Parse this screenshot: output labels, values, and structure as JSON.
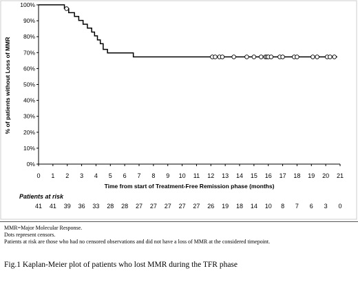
{
  "chart_data": {
    "type": "line",
    "step": true,
    "title": "",
    "xlabel": "Time from start of Treatment-Free Remission phase (months)",
    "ylabel": "% of patients without Loss of MMR",
    "xlim": [
      0,
      21
    ],
    "ylim": [
      0,
      100
    ],
    "x_ticks": [
      "0",
      "1",
      "2",
      "3",
      "4",
      "5",
      "6",
      "7",
      "8",
      "9",
      "10",
      "11",
      "12",
      "13",
      "14",
      "15",
      "16",
      "17",
      "18",
      "19",
      "20",
      "21"
    ],
    "y_ticks": [
      "0%",
      "10%",
      "20%",
      "30%",
      "40%",
      "50%",
      "60%",
      "70%",
      "80%",
      "90%",
      "100%"
    ],
    "series": [
      {
        "x": [
          0,
          1.8,
          2.1,
          2.5,
          2.8,
          3.1,
          3.4,
          3.7,
          3.9,
          4.1,
          4.3,
          4.5,
          4.8,
          6.6,
          20.8
        ],
        "y": [
          100,
          97.6,
          95.1,
          92.7,
          90.2,
          87.8,
          85.4,
          82.9,
          80.5,
          78.0,
          75.6,
          72.0,
          69.8,
          67.3,
          67.3
        ]
      }
    ],
    "censors": {
      "x": [
        1.95,
        12.1,
        12.3,
        12.6,
        12.8,
        13.6,
        14.5,
        15.0,
        15.5,
        15.8,
        15.9,
        16.0,
        16.2,
        16.8,
        17.0,
        17.8,
        18.0,
        19.1,
        19.4,
        20.1,
        20.3,
        20.6
      ],
      "y": [
        97.6,
        67.3,
        67.3,
        67.3,
        67.3,
        67.3,
        67.3,
        67.3,
        67.3,
        67.3,
        67.3,
        67.3,
        67.3,
        67.3,
        67.3,
        67.3,
        67.3,
        67.3,
        67.3,
        67.3,
        67.3,
        67.3
      ]
    },
    "risk_table": {
      "label": "Patients at risk",
      "values": [
        "41",
        "41",
        "39",
        "36",
        "33",
        "28",
        "28",
        "27",
        "27",
        "27",
        "27",
        "27",
        "26",
        "19",
        "18",
        "14",
        "10",
        "8",
        "7",
        "6",
        "3",
        "0"
      ]
    }
  },
  "notes": [
    "MMR=Major Molecular Response.",
    "Dots represent censors.",
    "Patients at risk are those who had no censored observations and did not have a loss of MMR at the considered timepoint."
  ],
  "caption": "Fig.1 Kaplan-Meier plot of patients who lost MMR during the TFR phase"
}
